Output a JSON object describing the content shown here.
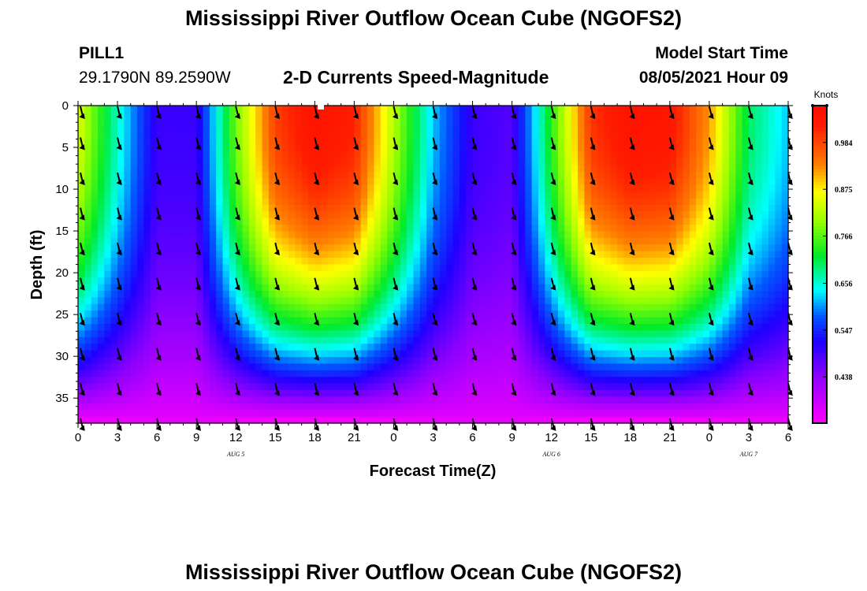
{
  "header": {
    "title": "Mississippi River Outflow Ocean Cube (NGOFS2)",
    "station": "PILL1",
    "location": "29.1790N  89.2590W",
    "subtitle": "2-D Currents Speed-Magnitude",
    "model_label": "Model Start Time",
    "model_time": "08/05/2021 Hour 09"
  },
  "footer": {
    "title": "Mississippi River Outflow Ocean Cube (NGOFS2)"
  },
  "chart_data": {
    "type": "heatmap",
    "title": "2-D Currents Speed-Magnitude",
    "xlabel": "Forecast Time(Z)",
    "ylabel": "Depth (ft)",
    "x_tick_labels": [
      "0",
      "3",
      "6",
      "9",
      "12",
      "15",
      "18",
      "21",
      "0",
      "3",
      "6",
      "9",
      "12",
      "15",
      "18",
      "21",
      "0",
      "3",
      "6"
    ],
    "x_range_hours": [
      0,
      54
    ],
    "date_labels": [
      {
        "label": "AUG 5",
        "hour": 12
      },
      {
        "label": "AUG 6",
        "hour": 36
      },
      {
        "label": "AUG 7",
        "hour": 51
      }
    ],
    "y_ticks": [
      0,
      5,
      10,
      15,
      20,
      25,
      30,
      35
    ],
    "y_range_ft": [
      0,
      38
    ],
    "y_inverted": true,
    "colorbar": {
      "label": "Knots",
      "ticks": [
        "0.984",
        "0.875",
        "0.766",
        "0.656",
        "0.547",
        "0.438"
      ],
      "range": [
        0.33,
        1.07
      ]
    },
    "speed_profile": {
      "description_hours": [
        0,
        3,
        6,
        9,
        12,
        15,
        18,
        21,
        24,
        27,
        30,
        33,
        36,
        39,
        42,
        45,
        48,
        51,
        54
      ],
      "surface_knots": [
        0.85,
        0.66,
        0.5,
        0.5,
        0.78,
        0.99,
        1.05,
        1.02,
        0.82,
        0.62,
        0.5,
        0.48,
        0.74,
        1.0,
        1.05,
        1.04,
        0.92,
        0.7,
        0.62
      ]
    },
    "vector_direction": "south / southeast (arrows point down-right)",
    "colors": {
      "min": "#ff00ff",
      "low": "#2200ff",
      "mid": "#00ffee",
      "midhigh": "#22dd00",
      "high": "#ffff00",
      "max": "#ff1100"
    }
  }
}
